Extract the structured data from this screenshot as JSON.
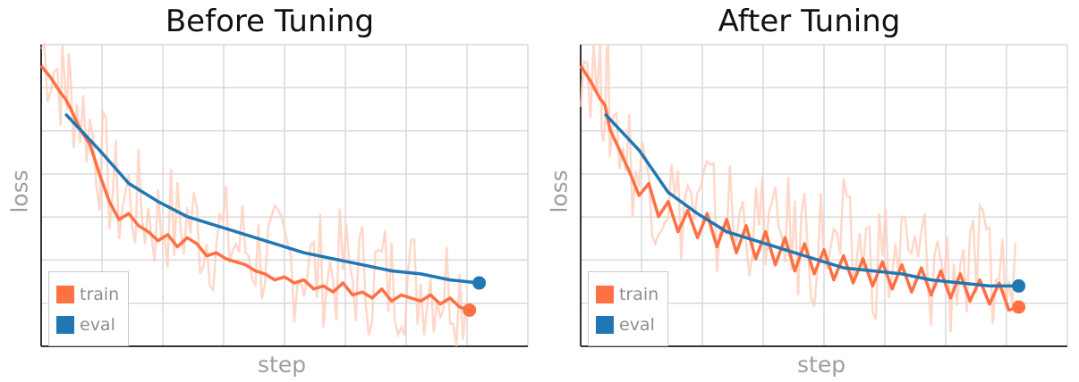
{
  "chart_data": [
    {
      "type": "line",
      "title": "Before Tuning",
      "xlabel": "step",
      "ylabel": "loss",
      "xlim": [
        0,
        100
      ],
      "ylim": [
        0,
        100
      ],
      "grid": true,
      "legend_position": "bottom-left",
      "series": [
        {
          "name": "train",
          "color": "#ff7043",
          "x": [
            0,
            2,
            4,
            5,
            6,
            8,
            10,
            12,
            14,
            16,
            18,
            20,
            22,
            24,
            26,
            28,
            30,
            32,
            34,
            36,
            38,
            40,
            42,
            44,
            46,
            48,
            50,
            52,
            54,
            56,
            58,
            60,
            62,
            64,
            66,
            68,
            70,
            72,
            74,
            76,
            78,
            80,
            82,
            84,
            86,
            88
          ],
          "y": [
            93,
            89,
            84,
            82,
            79,
            72,
            67,
            57,
            48,
            42,
            44,
            40,
            38,
            35,
            37,
            33,
            36,
            34,
            30,
            31,
            29,
            28,
            27,
            25,
            24,
            22,
            23,
            21,
            22,
            19,
            20,
            18,
            21,
            17,
            18,
            16,
            19,
            15,
            17,
            16,
            15,
            17,
            14,
            16,
            13,
            12
          ]
        },
        {
          "name": "eval",
          "color": "#1f77b4",
          "x": [
            5,
            12,
            18,
            24,
            30,
            36,
            42,
            48,
            54,
            60,
            66,
            72,
            78,
            84,
            90
          ],
          "y": [
            77,
            65,
            54,
            48,
            43,
            40,
            37,
            34,
            31,
            29,
            27,
            25,
            24,
            22,
            21
          ]
        }
      ]
    },
    {
      "type": "line",
      "title": "After Tuning",
      "xlabel": "step",
      "ylabel": "loss",
      "xlim": [
        0,
        100
      ],
      "ylim": [
        0,
        100
      ],
      "grid": true,
      "legend_position": "bottom-left",
      "series": [
        {
          "name": "train",
          "color": "#ff7043",
          "x": [
            0,
            2,
            4,
            5,
            6,
            8,
            10,
            12,
            14,
            16,
            18,
            20,
            22,
            24,
            26,
            28,
            30,
            32,
            34,
            36,
            38,
            40,
            42,
            44,
            46,
            48,
            50,
            52,
            54,
            56,
            58,
            60,
            62,
            64,
            66,
            68,
            70,
            72,
            74,
            76,
            78,
            80,
            82,
            84,
            86,
            88,
            90
          ],
          "y": [
            93,
            88,
            82,
            80,
            72,
            65,
            58,
            50,
            54,
            43,
            48,
            38,
            45,
            36,
            44,
            33,
            42,
            31,
            40,
            29,
            38,
            27,
            36,
            25,
            34,
            24,
            32,
            22,
            30,
            21,
            29,
            20,
            28,
            19,
            27,
            18,
            26,
            17,
            25,
            16,
            24,
            15,
            22,
            14,
            21,
            12,
            13
          ]
        },
        {
          "name": "eval",
          "color": "#1f77b4",
          "x": [
            5,
            12,
            18,
            24,
            30,
            36,
            42,
            48,
            54,
            60,
            66,
            72,
            78,
            84,
            90
          ],
          "y": [
            77,
            65,
            51,
            44,
            38,
            35,
            32,
            29,
            26,
            25,
            24,
            22,
            21,
            20,
            20
          ]
        }
      ]
    }
  ]
}
